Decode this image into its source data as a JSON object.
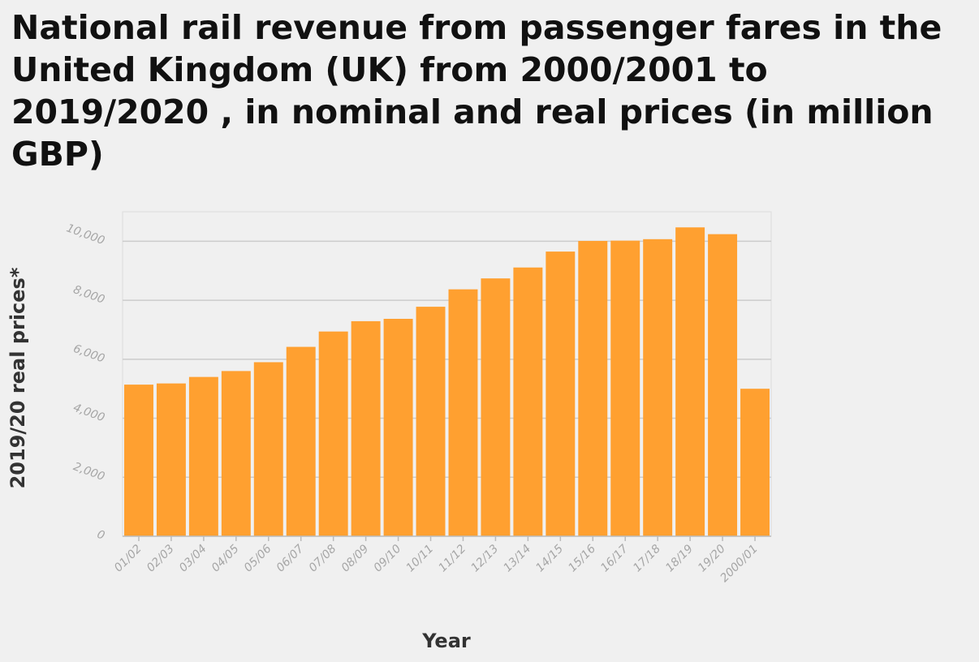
{
  "chart_data": {
    "type": "bar",
    "title": "National rail revenue from passenger fares in the United Kingdom (UK) from 2000/2001 to 2019/2020 , in nominal and real prices (in million GBP)",
    "xlabel": "Year",
    "ylabel": "2019/20 real prices*",
    "categories": [
      "01/02",
      "02/03",
      "03/04",
      "04/05",
      "05/06",
      "06/07",
      "07/08",
      "08/09",
      "09/10",
      "10/11",
      "11/12",
      "12/13",
      "13/14",
      "14/15",
      "15/16",
      "16/17",
      "17/18",
      "18/19",
      "19/20",
      "2000/01"
    ],
    "values": [
      5140,
      5180,
      5400,
      5600,
      5900,
      6420,
      6940,
      7290,
      7370,
      7780,
      8370,
      8740,
      9110,
      9650,
      10010,
      10020,
      10070,
      10470,
      10240,
      5000
    ],
    "ylim": [
      0,
      11000
    ],
    "yticks": [
      0,
      2000,
      4000,
      6000,
      8000,
      10000
    ],
    "ytick_labels": [
      "0",
      "2,000",
      "4,000",
      "6,000",
      "8,000",
      "10,000"
    ],
    "grid": true,
    "bar_color": "#ffa030",
    "grid_color": "#cccccc"
  }
}
